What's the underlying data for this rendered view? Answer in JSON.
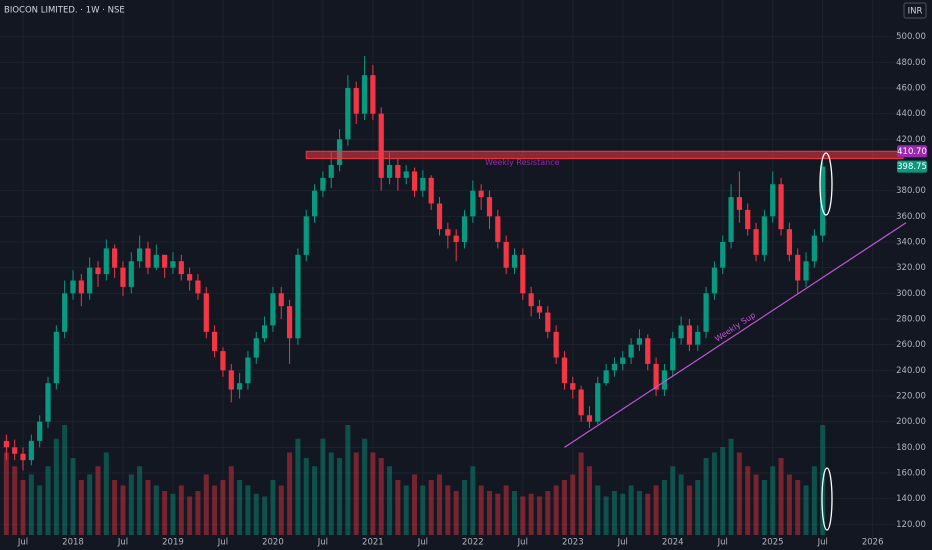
{
  "chart_data": {
    "type": "candlestick",
    "title": "BIOCON LIMITED. · 1W · NSE",
    "currency": "INR",
    "x": [
      "2017-05",
      "2017-06",
      "2017-07",
      "2017-08",
      "2017-09",
      "2017-10",
      "2017-11",
      "2017-12",
      "2018-01",
      "2018-02",
      "2018-03",
      "2018-04",
      "2018-05",
      "2018-06",
      "2018-07",
      "2018-08",
      "2018-09",
      "2018-10",
      "2018-11",
      "2018-12",
      "2019-01",
      "2019-02",
      "2019-03",
      "2019-04",
      "2019-05",
      "2019-06",
      "2019-07",
      "2019-08",
      "2019-09",
      "2019-10",
      "2019-11",
      "2019-12",
      "2020-01",
      "2020-02",
      "2020-03",
      "2020-04",
      "2020-05",
      "2020-06",
      "2020-07",
      "2020-08",
      "2020-09",
      "2020-10",
      "2020-11",
      "2020-12",
      "2021-01",
      "2021-02",
      "2021-03",
      "2021-04",
      "2021-05",
      "2021-06",
      "2021-07",
      "2021-08",
      "2021-09",
      "2021-10",
      "2021-11",
      "2021-12",
      "2022-01",
      "2022-02",
      "2022-03",
      "2022-04",
      "2022-05",
      "2022-06",
      "2022-07",
      "2022-08",
      "2022-09",
      "2022-10",
      "2022-11",
      "2022-12",
      "2023-01",
      "2023-02",
      "2023-03",
      "2023-04",
      "2023-05",
      "2023-06",
      "2023-07",
      "2023-08",
      "2023-09",
      "2023-10",
      "2023-11",
      "2023-12",
      "2024-01",
      "2024-02",
      "2024-03",
      "2024-04",
      "2024-05",
      "2024-06",
      "2024-07",
      "2024-08",
      "2024-09",
      "2024-10",
      "2024-11",
      "2024-12",
      "2025-01",
      "2025-02",
      "2025-03",
      "2025-04",
      "2025-05",
      "2025-06",
      "2025-07"
    ],
    "open": [
      185,
      180,
      175,
      170,
      185,
      200,
      230,
      270,
      300,
      310,
      300,
      320,
      315,
      335,
      320,
      305,
      325,
      335,
      320,
      330,
      320,
      325,
      315,
      310,
      300,
      270,
      255,
      240,
      225,
      230,
      250,
      265,
      275,
      300,
      290,
      265,
      330,
      360,
      380,
      390,
      400,
      420,
      460,
      440,
      470,
      440,
      390,
      400,
      390,
      395,
      380,
      390,
      370,
      350,
      345,
      340,
      360,
      380,
      375,
      360,
      340,
      320,
      330,
      300,
      290,
      285,
      270,
      250,
      230,
      225,
      205,
      200,
      230,
      240,
      245,
      250,
      260,
      265,
      245,
      225,
      240,
      265,
      275,
      260,
      270,
      300,
      320,
      340,
      375,
      365,
      350,
      330,
      360,
      385,
      350,
      330,
      310,
      325,
      345
    ],
    "high": [
      190,
      186,
      180,
      190,
      205,
      235,
      275,
      310,
      318,
      315,
      328,
      325,
      342,
      338,
      325,
      332,
      345,
      340,
      338,
      330,
      332,
      330,
      320,
      315,
      305,
      275,
      258,
      245,
      238,
      255,
      270,
      282,
      305,
      305,
      295,
      335,
      365,
      385,
      395,
      410,
      428,
      470,
      465,
      485,
      478,
      445,
      410,
      405,
      400,
      398,
      396,
      392,
      375,
      355,
      350,
      365,
      388,
      385,
      380,
      365,
      345,
      335,
      335,
      305,
      295,
      290,
      275,
      255,
      235,
      228,
      212,
      235,
      245,
      250,
      255,
      265,
      272,
      268,
      250,
      245,
      270,
      282,
      280,
      275,
      305,
      325,
      345,
      385,
      395,
      370,
      355,
      365,
      395,
      390,
      355,
      335,
      332,
      350,
      402
    ],
    "low": [
      170,
      170,
      162,
      166,
      180,
      195,
      225,
      265,
      295,
      290,
      295,
      305,
      310,
      312,
      298,
      300,
      320,
      315,
      318,
      312,
      315,
      310,
      302,
      295,
      265,
      250,
      235,
      215,
      218,
      225,
      245,
      262,
      270,
      280,
      245,
      260,
      325,
      355,
      375,
      382,
      395,
      415,
      432,
      435,
      435,
      380,
      385,
      380,
      385,
      375,
      375,
      365,
      345,
      335,
      325,
      335,
      355,
      365,
      350,
      335,
      315,
      315,
      295,
      282,
      280,
      265,
      245,
      225,
      218,
      200,
      195,
      198,
      228,
      235,
      240,
      245,
      255,
      240,
      220,
      220,
      235,
      260,
      255,
      255,
      265,
      295,
      315,
      335,
      355,
      345,
      325,
      325,
      355,
      345,
      325,
      300,
      305,
      320,
      340
    ],
    "close": [
      180,
      175,
      170,
      185,
      200,
      230,
      270,
      300,
      310,
      300,
      320,
      315,
      335,
      320,
      305,
      325,
      335,
      320,
      330,
      320,
      325,
      315,
      310,
      300,
      270,
      255,
      240,
      225,
      230,
      250,
      265,
      275,
      300,
      290,
      265,
      330,
      360,
      380,
      390,
      400,
      420,
      460,
      440,
      470,
      440,
      390,
      400,
      390,
      395,
      380,
      390,
      370,
      350,
      345,
      340,
      360,
      380,
      375,
      360,
      340,
      320,
      330,
      300,
      290,
      285,
      270,
      250,
      230,
      225,
      205,
      200,
      230,
      240,
      245,
      250,
      260,
      265,
      245,
      225,
      240,
      265,
      275,
      260,
      270,
      300,
      320,
      340,
      375,
      365,
      350,
      330,
      360,
      385,
      350,
      330,
      310,
      325,
      345,
      398.75
    ],
    "volume": [
      30,
      25,
      20,
      22,
      18,
      25,
      35,
      40,
      28,
      20,
      22,
      25,
      30,
      20,
      18,
      22,
      25,
      20,
      18,
      16,
      15,
      18,
      14,
      16,
      22,
      18,
      20,
      25,
      20,
      18,
      15,
      14,
      20,
      18,
      30,
      35,
      28,
      25,
      35,
      30,
      28,
      40,
      30,
      35,
      30,
      28,
      25,
      20,
      18,
      22,
      18,
      20,
      22,
      18,
      16,
      20,
      25,
      18,
      16,
      15,
      18,
      16,
      14,
      15,
      14,
      16,
      18,
      20,
      22,
      30,
      25,
      18,
      14,
      16,
      15,
      18,
      16,
      15,
      18,
      20,
      25,
      22,
      18,
      20,
      28,
      30,
      32,
      35,
      30,
      25,
      22,
      20,
      25,
      28,
      22,
      20,
      18,
      25,
      40
    ],
    "up_color": "#089981",
    "down_color": "#f23645",
    "ylim": [
      100,
      520
    ],
    "yticks": [
      {
        "value": 120,
        "label": "120.00"
      },
      {
        "value": 140,
        "label": "140.00"
      },
      {
        "value": 160,
        "label": "160.00"
      },
      {
        "value": 180,
        "label": "180.00"
      },
      {
        "value": 200,
        "label": "200.00"
      },
      {
        "value": 220,
        "label": "220.00"
      },
      {
        "value": 240,
        "label": "240.00"
      },
      {
        "value": 260,
        "label": "260.00"
      },
      {
        "value": 280,
        "label": "280.00"
      },
      {
        "value": 300,
        "label": "300.00"
      },
      {
        "value": 320,
        "label": "320.00"
      },
      {
        "value": 340,
        "label": "340.00"
      },
      {
        "value": 360,
        "label": "360.00"
      },
      {
        "value": 380,
        "label": "380.00"
      },
      {
        "value": 420,
        "label": "420.00"
      },
      {
        "value": 440,
        "label": "440.00"
      },
      {
        "value": 460,
        "label": "460.00"
      },
      {
        "value": 480,
        "label": "480.00"
      },
      {
        "value": 500,
        "label": "500.00"
      }
    ],
    "xticks": [
      {
        "value": "2017-07",
        "label": "Jul"
      },
      {
        "value": "2018-01",
        "label": "2018"
      },
      {
        "value": "2018-07",
        "label": "Jul"
      },
      {
        "value": "2019-01",
        "label": "2019"
      },
      {
        "value": "2019-07",
        "label": "Jul"
      },
      {
        "value": "2020-01",
        "label": "2020"
      },
      {
        "value": "2020-07",
        "label": "Jul"
      },
      {
        "value": "2021-01",
        "label": "2021"
      },
      {
        "value": "2021-07",
        "label": "Jul"
      },
      {
        "value": "2022-01",
        "label": "2022"
      },
      {
        "value": "2022-07",
        "label": "Jul"
      },
      {
        "value": "2023-01",
        "label": "2023"
      },
      {
        "value": "2023-07",
        "label": "Jul"
      },
      {
        "value": "2024-01",
        "label": "2024"
      },
      {
        "value": "2024-07",
        "label": "Jul"
      },
      {
        "value": "2025-01",
        "label": "2025"
      },
      {
        "value": "2025-07",
        "label": "Jul"
      },
      {
        "value": "2026-01",
        "label": "2026"
      }
    ],
    "grid": true,
    "price_tags": [
      {
        "value": 410.7,
        "label": "410.70",
        "color": "#9c27b0"
      },
      {
        "value": 398.75,
        "label": "398.75",
        "color": "#089981"
      }
    ],
    "resistance": {
      "label": "Weekly Resistance",
      "top": 410.7,
      "bottom": 405,
      "start": "2020-05",
      "color": "#f23645"
    },
    "support": {
      "label": "Weekly Sup",
      "start": {
        "x": "2022-12",
        "y": 180
      },
      "end": {
        "x": "2026-05",
        "y": 355
      },
      "color": "#c156d6"
    }
  }
}
